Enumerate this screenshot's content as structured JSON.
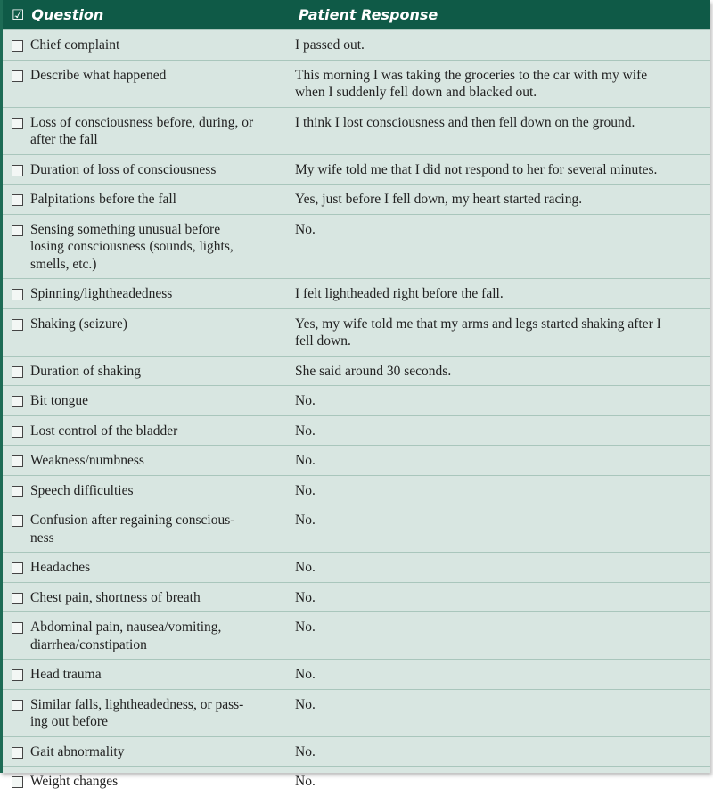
{
  "header": {
    "question": "Question",
    "response": "Patient Response",
    "check_icon": "checkbox-checked-icon"
  },
  "colors": {
    "header_bg": "#0f5a47",
    "row_bg": "#d8e6e1",
    "divider": "#a9c6bc"
  },
  "rows": [
    {
      "q": "Chief complaint",
      "a": "I passed out."
    },
    {
      "q": "Describe what happened",
      "a": "This morning I was taking the groceries to the car with my wife\nwhen I suddenly fell down and blacked out."
    },
    {
      "q": "Loss of consciousness before, during, or\nafter the fall",
      "a": "I think I lost consciousness and then fell down on the ground."
    },
    {
      "q": "Duration of loss of consciousness",
      "a": "My wife told me that I did not respond to her for several minutes."
    },
    {
      "q": "Palpitations before the fall",
      "a": "Yes, just before I fell down, my heart started racing."
    },
    {
      "q": "Sensing something unusual before\nlosing consciousness (sounds, lights,\nsmells, etc.)",
      "a": "No."
    },
    {
      "q": "Spinning/lightheadedness",
      "a": "I felt lightheaded right before the fall."
    },
    {
      "q": "Shaking (seizure)",
      "a": "Yes, my wife told me that my arms and legs started shaking after I\nfell down."
    },
    {
      "q": "Duration of shaking",
      "a": "She said around 30 seconds."
    },
    {
      "q": "Bit tongue",
      "a": "No."
    },
    {
      "q": "Lost control of the bladder",
      "a": "No."
    },
    {
      "q": "Weakness/numbness",
      "a": "No."
    },
    {
      "q": "Speech difficulties",
      "a": "No."
    },
    {
      "q": "Confusion after regaining conscious-\nness",
      "a": "No."
    },
    {
      "q": "Headaches",
      "a": "No."
    },
    {
      "q": "Chest pain, shortness of breath",
      "a": "No."
    },
    {
      "q": "Abdominal pain, nausea/vomiting,\ndiarrhea/constipation",
      "a": "No."
    },
    {
      "q": "Head trauma",
      "a": "No."
    },
    {
      "q": "Similar falls, lightheadedness, or pass-\ning out before",
      "a": "No."
    },
    {
      "q": "Gait abnormality",
      "a": "No."
    },
    {
      "q": "Weight changes",
      "a": "No."
    }
  ]
}
